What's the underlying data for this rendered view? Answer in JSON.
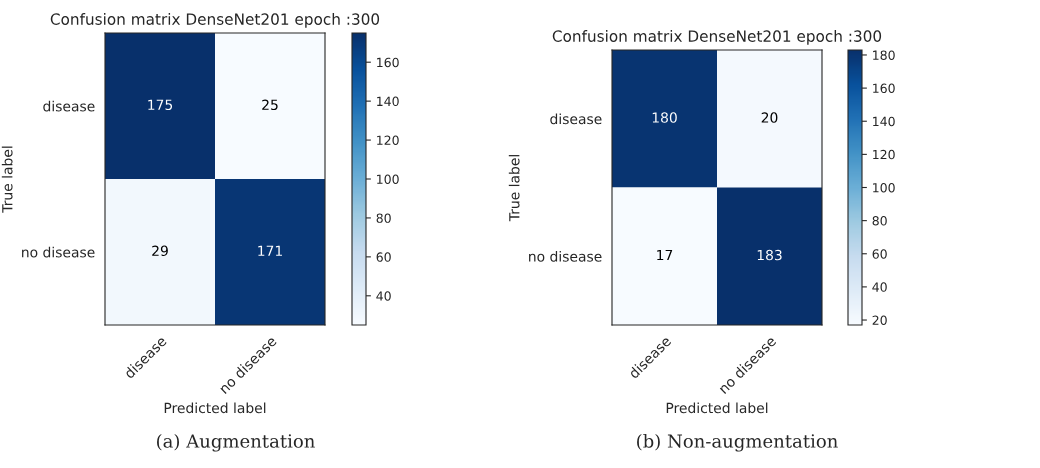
{
  "chart_data": [
    {
      "type": "heatmap",
      "title": "Confusion matrix DenseNet201 epoch :300",
      "xlabel": "Predicted label",
      "ylabel": "True label",
      "categories": [
        "disease",
        "no disease"
      ],
      "y_categories": [
        "disease",
        "no disease"
      ],
      "cells": [
        [
          175,
          25
        ],
        [
          29,
          171
        ]
      ],
      "data_labels": true,
      "clim": [
        25,
        175
      ],
      "cticks": [
        40,
        60,
        80,
        100,
        120,
        140,
        160
      ],
      "annotations": [
        "(a) Augmentation"
      ]
    },
    {
      "type": "heatmap",
      "title": "Confusion matrix DenseNet201 epoch :300",
      "xlabel": "Predicted label",
      "ylabel": "True label",
      "categories": [
        "disease",
        "no disease"
      ],
      "y_categories": [
        "disease",
        "no disease"
      ],
      "cells": [
        [
          180,
          20
        ],
        [
          17,
          183
        ]
      ],
      "data_labels": true,
      "clim": [
        17,
        183
      ],
      "cticks": [
        20,
        40,
        60,
        80,
        100,
        120,
        140,
        160,
        180
      ],
      "annotations": [
        "(b) Non-augmentation"
      ]
    }
  ]
}
